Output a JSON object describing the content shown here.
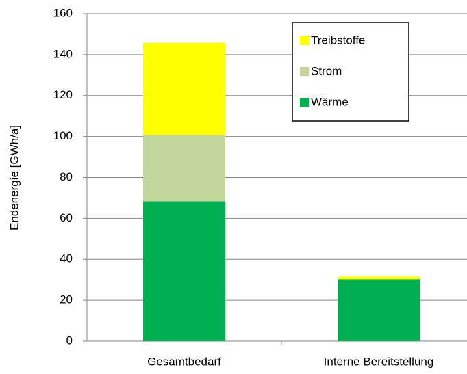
{
  "chart_data": {
    "type": "stacked_bar",
    "categories": [
      "Gesamtbedarf",
      "Interne Bereitstellung"
    ],
    "series": [
      {
        "name": "Wärme",
        "color": "#00b050",
        "values": [
          68.3,
          30.3
        ]
      },
      {
        "name": "Strom",
        "color": "#c3d69b",
        "values": [
          32.4,
          0
        ]
      },
      {
        "name": "Treibstoffe",
        "color": "#ffff00",
        "values": [
          45,
          1.3
        ]
      }
    ],
    "ylabel": "Endenergie [GWh/a]",
    "ylim": [
      0,
      160
    ],
    "yticks": [
      0,
      20,
      40,
      60,
      80,
      100,
      120,
      140,
      160
    ],
    "grid": true,
    "legend": "upper right"
  }
}
